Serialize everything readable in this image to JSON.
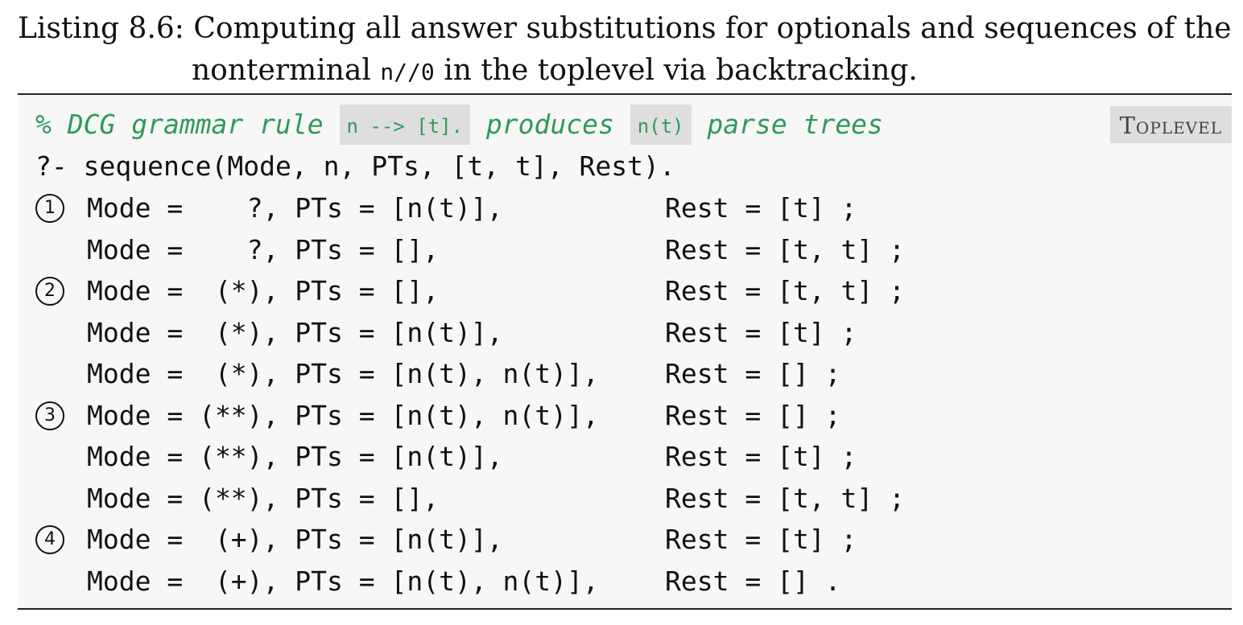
{
  "caption": {
    "label": "Listing 8.6:",
    "line1_text": "Computing all answer substitutions for optionals and sequences of the",
    "line2_prefix": "nonterminal",
    "line2_code": "n//0",
    "line2_suffix": "in the toplevel via backtracking."
  },
  "listing": {
    "comment_prefix": "% DCG grammar rule",
    "comment_code1": "n --> [t].",
    "comment_mid": "produces",
    "comment_code2": "n(t)",
    "comment_suffix": "parse trees",
    "tag": "Toplevel",
    "query": "?- sequence(Mode, n, PTs, [t, t], Rest).",
    "answers": [
      {
        "marker": "1",
        "left": "Mode =    ?, PTs = [n(t)],",
        "right": "Rest = [t] ;"
      },
      {
        "marker": "",
        "left": "Mode =    ?, PTs = [],",
        "right": "Rest = [t, t] ;"
      },
      {
        "marker": "2",
        "left": "Mode =  (*), PTs = [],",
        "right": "Rest = [t, t] ;"
      },
      {
        "marker": "",
        "left": "Mode =  (*), PTs = [n(t)],",
        "right": "Rest = [t] ;"
      },
      {
        "marker": "",
        "left": "Mode =  (*), PTs = [n(t), n(t)],",
        "right": "Rest = [] ;"
      },
      {
        "marker": "3",
        "left": "Mode = (**), PTs = [n(t), n(t)],",
        "right": "Rest = [] ;"
      },
      {
        "marker": "",
        "left": "Mode = (**), PTs = [n(t)],",
        "right": "Rest = [t] ;"
      },
      {
        "marker": "",
        "left": "Mode = (**), PTs = [],",
        "right": "Rest = [t, t] ;"
      },
      {
        "marker": "4",
        "left": "Mode =  (+), PTs = [n(t)],",
        "right": "Rest = [t] ;"
      },
      {
        "marker": "",
        "left": "Mode =  (+), PTs = [n(t), n(t)],",
        "right": "Rest = [] ."
      }
    ]
  }
}
